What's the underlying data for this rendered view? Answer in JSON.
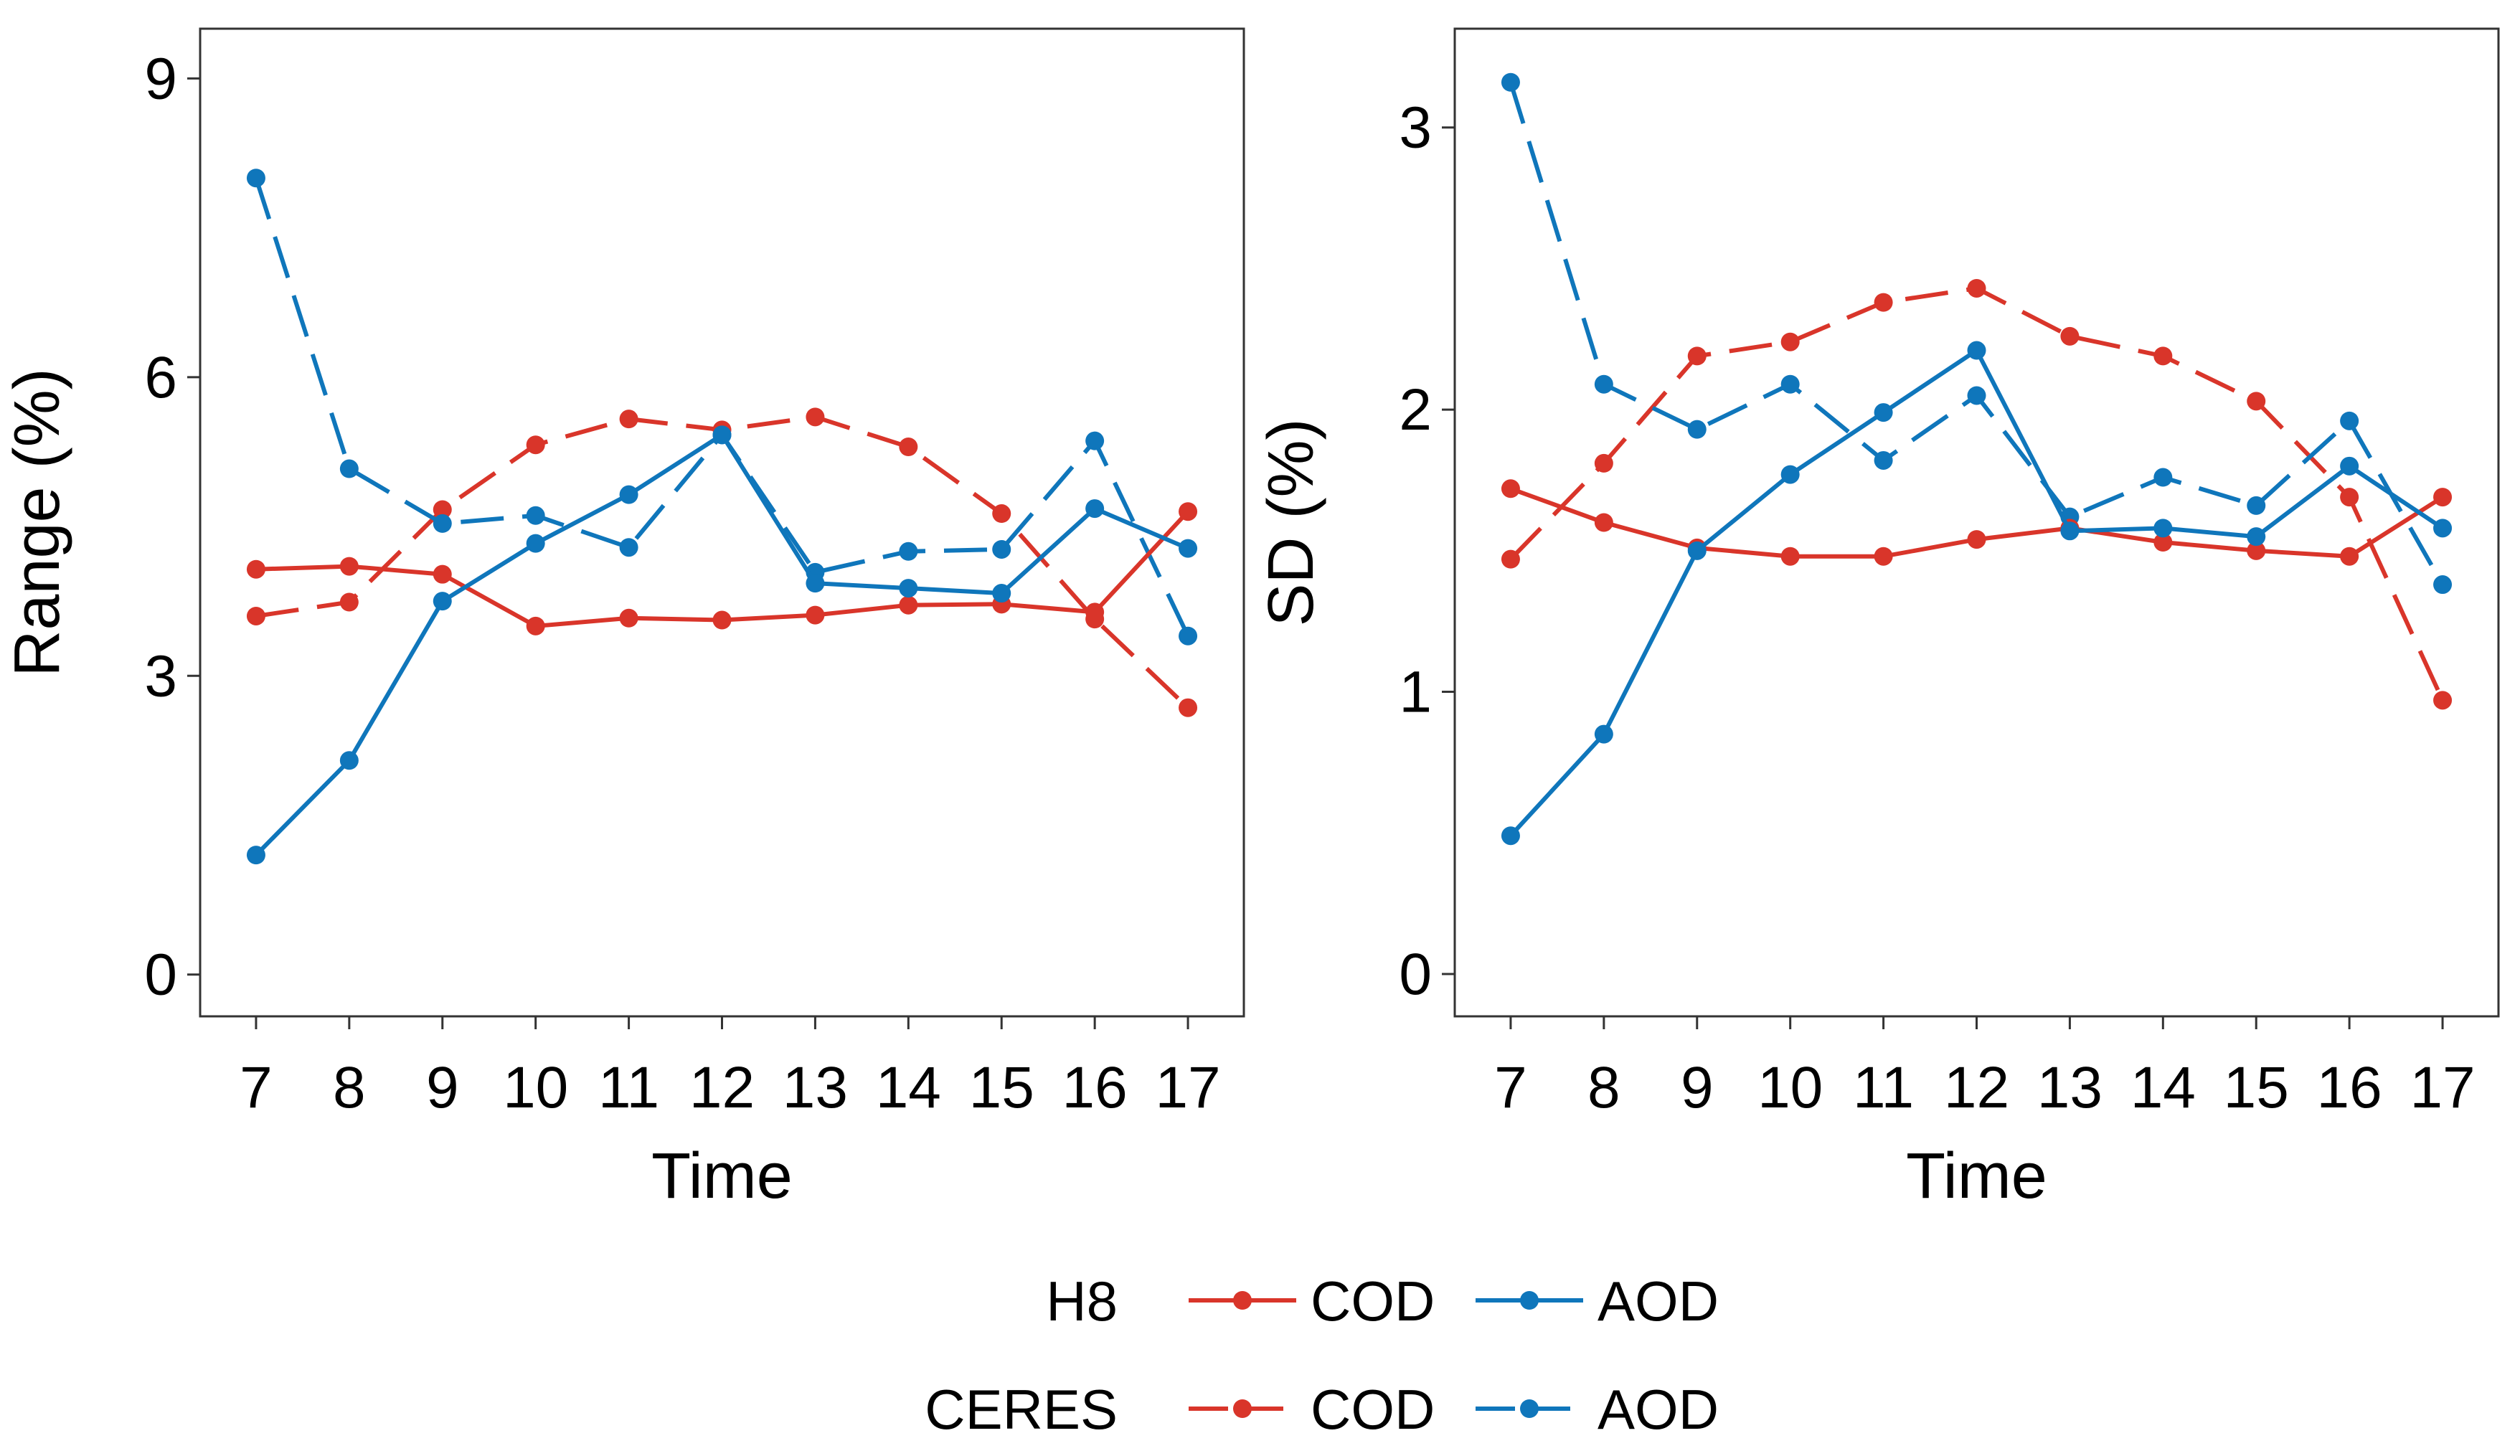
{
  "colors": {
    "cod": "#d9352a",
    "aod": "#0f76bb",
    "axis": "#333333"
  },
  "legend": {
    "rows": [
      {
        "label": "H8",
        "linestyle": "solid",
        "entries": [
          {
            "label": "COD",
            "color_key": "cod"
          },
          {
            "label": "AOD",
            "color_key": "aod"
          }
        ]
      },
      {
        "label": "CERES",
        "linestyle": "dashed",
        "entries": [
          {
            "label": "COD",
            "color_key": "cod"
          },
          {
            "label": "AOD",
            "color_key": "aod"
          }
        ]
      }
    ]
  },
  "chart_data": [
    {
      "type": "line",
      "xlabel": "Time",
      "ylabel": "Range (%)",
      "x": [
        7,
        8,
        9,
        10,
        11,
        12,
        13,
        14,
        15,
        16,
        17
      ],
      "xlim": [
        6.4,
        17.6
      ],
      "ylim": [
        -0.42,
        9.5
      ],
      "yticks": [
        0,
        3,
        6,
        9
      ],
      "series": [
        {
          "name": "H8 COD",
          "color_key": "cod",
          "linestyle": "solid",
          "values": [
            4.07,
            4.1,
            4.02,
            3.5,
            3.58,
            3.56,
            3.61,
            3.71,
            3.72,
            3.64,
            4.65
          ]
        },
        {
          "name": "H8 AOD",
          "color_key": "aod",
          "linestyle": "solid",
          "values": [
            1.2,
            2.15,
            3.75,
            4.33,
            4.82,
            5.42,
            3.93,
            3.88,
            3.83,
            4.68,
            4.28
          ]
        },
        {
          "name": "CERES COD",
          "color_key": "cod",
          "linestyle": "dashed",
          "values": [
            3.6,
            3.74,
            4.67,
            5.32,
            5.58,
            5.47,
            5.6,
            5.3,
            4.63,
            3.57,
            2.68
          ]
        },
        {
          "name": "CERES AOD",
          "color_key": "aod",
          "linestyle": "dashed",
          "values": [
            8.0,
            5.08,
            4.53,
            4.61,
            4.29,
            5.42,
            4.04,
            4.25,
            4.27,
            5.36,
            3.4
          ]
        }
      ]
    },
    {
      "type": "line",
      "xlabel": "Time",
      "ylabel": "SD (%)",
      "x": [
        7,
        8,
        9,
        10,
        11,
        12,
        13,
        14,
        15,
        16,
        17
      ],
      "xlim": [
        6.4,
        17.6
      ],
      "ylim": [
        -0.15,
        3.35
      ],
      "yticks": [
        0,
        1,
        2,
        3
      ],
      "series": [
        {
          "name": "H8 COD",
          "color_key": "cod",
          "linestyle": "solid",
          "values": [
            1.72,
            1.6,
            1.51,
            1.48,
            1.48,
            1.54,
            1.58,
            1.53,
            1.5,
            1.48,
            1.69
          ]
        },
        {
          "name": "H8 AOD",
          "color_key": "aod",
          "linestyle": "solid",
          "values": [
            0.49,
            0.85,
            1.5,
            1.77,
            1.99,
            2.21,
            1.57,
            1.58,
            1.55,
            1.8,
            1.58
          ]
        },
        {
          "name": "CERES COD",
          "color_key": "cod",
          "linestyle": "dashed",
          "values": [
            1.47,
            1.81,
            2.19,
            2.24,
            2.38,
            2.43,
            2.26,
            2.19,
            2.03,
            1.69,
            0.97
          ]
        },
        {
          "name": "CERES AOD",
          "color_key": "aod",
          "linestyle": "dashed",
          "values": [
            3.16,
            2.09,
            1.93,
            2.09,
            1.82,
            2.05,
            1.62,
            1.76,
            1.66,
            1.96,
            1.38
          ]
        }
      ]
    }
  ]
}
